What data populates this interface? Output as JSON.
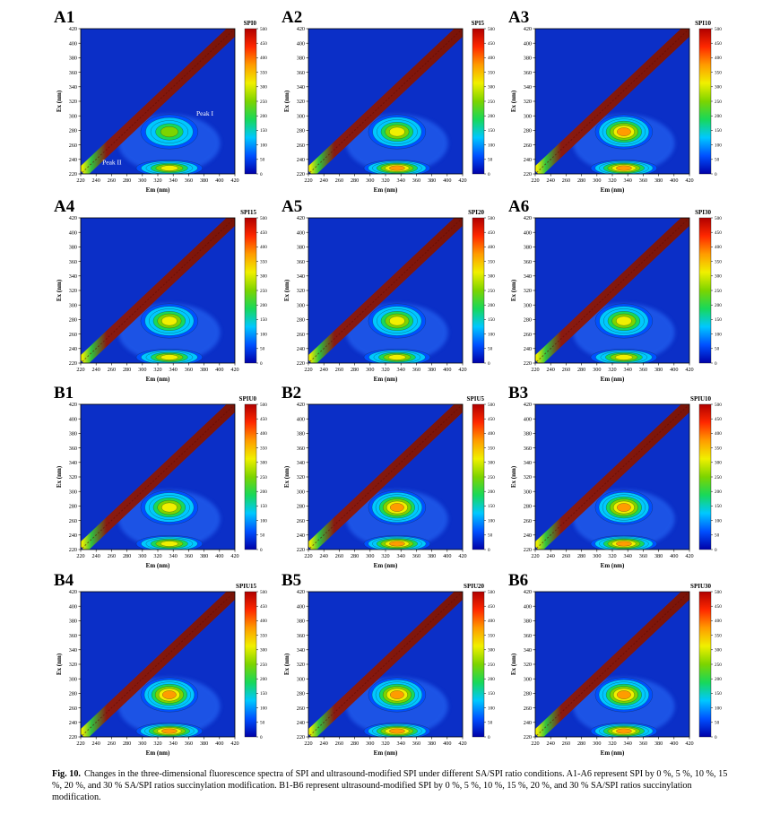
{
  "figure": {
    "caption_label": "Fig. 10.",
    "caption_text": "Changes in the three-dimensional fluorescence spectra of SPI and ultrasound-modified SPI under different SA/SPI ratio conditions. A1-A6 represent SPI by 0 %, 5 %, 10 %, 15 %, 20 %, and 30 % SA/SPI ratios succinylation modification. B1-B6 represent ultrasound-modified SPI by 0 %, 5 %, 10 %, 15 %, 20 %, and 30 % SA/SPI ratios succinylation modification."
  },
  "colors": {
    "background_blue": "#0b2fc7",
    "scatter_line": "#8a1a10",
    "colorbar_stops": [
      "#0000a8",
      "#0050ff",
      "#00c8ff",
      "#18d85a",
      "#7cd400",
      "#f0f000",
      "#ff9c00",
      "#ff2800",
      "#b00000"
    ]
  },
  "chart_data": [
    {
      "type": "heatmap",
      "panel": "A1",
      "title": "SPI0",
      "xlabel": "Em (nm)",
      "ylabel": "Ex (nm)",
      "xlim": [
        220,
        420
      ],
      "ylim": [
        220,
        420
      ],
      "x_ticks": [
        220,
        240,
        260,
        280,
        300,
        320,
        340,
        360,
        380,
        400,
        420
      ],
      "y_ticks": [
        220,
        240,
        260,
        280,
        300,
        320,
        340,
        360,
        380,
        400,
        420
      ],
      "colorbar_range": [
        0,
        500
      ],
      "colorbar_ticks": [
        0,
        50,
        100,
        150,
        200,
        250,
        300,
        350,
        400,
        450,
        500
      ],
      "peaks": [
        {
          "name": "Peak I",
          "em": 335,
          "ex": 278,
          "intensity": 270
        },
        {
          "name": "Peak II",
          "em": 335,
          "ex": 228,
          "intensity": 300
        }
      ],
      "annotations": [
        {
          "text": "Peak I",
          "em": 370,
          "ex": 300
        },
        {
          "text": "Peak II",
          "em": 248,
          "ex": 233
        }
      ]
    },
    {
      "type": "heatmap",
      "panel": "A2",
      "title": "SPI5",
      "xlabel": "Em (nm)",
      "ylabel": "Ex (nm)",
      "xlim": [
        220,
        420
      ],
      "ylim": [
        220,
        420
      ],
      "x_ticks": [
        220,
        240,
        260,
        280,
        300,
        320,
        340,
        360,
        380,
        400,
        420
      ],
      "y_ticks": [
        220,
        240,
        260,
        280,
        300,
        320,
        340,
        360,
        380,
        400,
        420
      ],
      "colorbar_range": [
        0,
        500
      ],
      "colorbar_ticks": [
        0,
        50,
        100,
        150,
        200,
        250,
        300,
        350,
        400,
        450,
        500
      ],
      "peaks": [
        {
          "name": "Peak I",
          "em": 335,
          "ex": 278,
          "intensity": 290
        },
        {
          "name": "Peak II",
          "em": 335,
          "ex": 228,
          "intensity": 330
        }
      ],
      "annotations": []
    },
    {
      "type": "heatmap",
      "panel": "A3",
      "title": "SPI10",
      "xlabel": "Em (nm)",
      "ylabel": "Ex (nm)",
      "xlim": [
        220,
        420
      ],
      "ylim": [
        220,
        420
      ],
      "x_ticks": [
        220,
        240,
        260,
        280,
        300,
        320,
        340,
        360,
        380,
        400,
        420
      ],
      "y_ticks": [
        220,
        240,
        260,
        280,
        300,
        320,
        340,
        360,
        380,
        400,
        420
      ],
      "colorbar_range": [
        0,
        500
      ],
      "colorbar_ticks": [
        0,
        50,
        100,
        150,
        200,
        250,
        300,
        350,
        400,
        450,
        500
      ],
      "peaks": [
        {
          "name": "Peak I",
          "em": 335,
          "ex": 278,
          "intensity": 330
        },
        {
          "name": "Peak II",
          "em": 335,
          "ex": 228,
          "intensity": 330
        }
      ],
      "annotations": []
    },
    {
      "type": "heatmap",
      "panel": "A4",
      "title": "SPI15",
      "xlabel": "Em (nm)",
      "ylabel": "Ex (nm)",
      "xlim": [
        220,
        420
      ],
      "ylim": [
        220,
        420
      ],
      "x_ticks": [
        220,
        240,
        260,
        280,
        300,
        320,
        340,
        360,
        380,
        400,
        420
      ],
      "y_ticks": [
        220,
        240,
        260,
        280,
        300,
        320,
        340,
        360,
        380,
        400,
        420
      ],
      "colorbar_range": [
        0,
        500
      ],
      "colorbar_ticks": [
        0,
        50,
        100,
        150,
        200,
        250,
        300,
        350,
        400,
        450,
        500
      ],
      "peaks": [
        {
          "name": "Peak I",
          "em": 335,
          "ex": 278,
          "intensity": 300
        },
        {
          "name": "Peak II",
          "em": 335,
          "ex": 228,
          "intensity": 320
        }
      ],
      "annotations": []
    },
    {
      "type": "heatmap",
      "panel": "A5",
      "title": "SPI20",
      "xlabel": "Em (nm)",
      "ylabel": "Ex (nm)",
      "xlim": [
        220,
        420
      ],
      "ylim": [
        220,
        420
      ],
      "x_ticks": [
        220,
        240,
        260,
        280,
        300,
        320,
        340,
        360,
        380,
        400,
        420
      ],
      "y_ticks": [
        220,
        240,
        260,
        280,
        300,
        320,
        340,
        360,
        380,
        400,
        420
      ],
      "colorbar_range": [
        0,
        500
      ],
      "colorbar_ticks": [
        0,
        50,
        100,
        150,
        200,
        250,
        300,
        350,
        400,
        450,
        500
      ],
      "peaks": [
        {
          "name": "Peak I",
          "em": 335,
          "ex": 278,
          "intensity": 290
        },
        {
          "name": "Peak II",
          "em": 335,
          "ex": 228,
          "intensity": 320
        }
      ],
      "annotations": []
    },
    {
      "type": "heatmap",
      "panel": "A6",
      "title": "SPI30",
      "xlabel": "Em (nm)",
      "ylabel": "Ex (nm)",
      "xlim": [
        220,
        420
      ],
      "ylim": [
        220,
        420
      ],
      "x_ticks": [
        220,
        240,
        260,
        280,
        300,
        320,
        340,
        360,
        380,
        400,
        420
      ],
      "y_ticks": [
        220,
        240,
        260,
        280,
        300,
        320,
        340,
        360,
        380,
        400,
        420
      ],
      "colorbar_range": [
        0,
        500
      ],
      "colorbar_ticks": [
        0,
        50,
        100,
        150,
        200,
        250,
        300,
        350,
        400,
        450,
        500
      ],
      "peaks": [
        {
          "name": "Peak I",
          "em": 335,
          "ex": 278,
          "intensity": 290
        },
        {
          "name": "Peak II",
          "em": 335,
          "ex": 228,
          "intensity": 310
        }
      ],
      "annotations": []
    },
    {
      "type": "heatmap",
      "panel": "B1",
      "title": "SPIU0",
      "xlabel": "Em (nm)",
      "ylabel": "Ex (nm)",
      "xlim": [
        220,
        420
      ],
      "ylim": [
        220,
        420
      ],
      "x_ticks": [
        220,
        240,
        260,
        280,
        300,
        320,
        340,
        360,
        380,
        400,
        420
      ],
      "y_ticks": [
        220,
        240,
        260,
        280,
        300,
        320,
        340,
        360,
        380,
        400,
        420
      ],
      "colorbar_range": [
        0,
        500
      ],
      "colorbar_ticks": [
        0,
        50,
        100,
        150,
        200,
        250,
        300,
        350,
        400,
        450,
        500
      ],
      "peaks": [
        {
          "name": "Peak I",
          "em": 335,
          "ex": 278,
          "intensity": 280
        },
        {
          "name": "Peak II",
          "em": 335,
          "ex": 228,
          "intensity": 310
        }
      ],
      "annotations": []
    },
    {
      "type": "heatmap",
      "panel": "B2",
      "title": "SPIU5",
      "xlabel": "Em (nm)",
      "ylabel": "Ex (nm)",
      "xlim": [
        220,
        420
      ],
      "ylim": [
        220,
        420
      ],
      "x_ticks": [
        220,
        240,
        260,
        280,
        300,
        320,
        340,
        360,
        380,
        400,
        420
      ],
      "y_ticks": [
        220,
        240,
        260,
        280,
        300,
        320,
        340,
        360,
        380,
        400,
        420
      ],
      "colorbar_range": [
        0,
        500
      ],
      "colorbar_ticks": [
        0,
        50,
        100,
        150,
        200,
        250,
        300,
        350,
        400,
        450,
        500
      ],
      "peaks": [
        {
          "name": "Peak I",
          "em": 335,
          "ex": 278,
          "intensity": 330
        },
        {
          "name": "Peak II",
          "em": 335,
          "ex": 228,
          "intensity": 330
        }
      ],
      "annotations": []
    },
    {
      "type": "heatmap",
      "panel": "B3",
      "title": "SPIU10",
      "xlabel": "Em (nm)",
      "ylabel": "Ex (nm)",
      "xlim": [
        220,
        420
      ],
      "ylim": [
        220,
        420
      ],
      "x_ticks": [
        220,
        240,
        260,
        280,
        300,
        320,
        340,
        360,
        380,
        400,
        420
      ],
      "y_ticks": [
        220,
        240,
        260,
        280,
        300,
        320,
        340,
        360,
        380,
        400,
        420
      ],
      "colorbar_range": [
        0,
        500
      ],
      "colorbar_ticks": [
        0,
        50,
        100,
        150,
        200,
        250,
        300,
        350,
        400,
        450,
        500
      ],
      "peaks": [
        {
          "name": "Peak I",
          "em": 335,
          "ex": 278,
          "intensity": 340
        },
        {
          "name": "Peak II",
          "em": 335,
          "ex": 228,
          "intensity": 340
        }
      ],
      "annotations": []
    },
    {
      "type": "heatmap",
      "panel": "B4",
      "title": "SPIU15",
      "xlabel": "Em (nm)",
      "ylabel": "Ex (nm)",
      "xlim": [
        220,
        420
      ],
      "ylim": [
        220,
        420
      ],
      "x_ticks": [
        220,
        240,
        260,
        280,
        300,
        320,
        340,
        360,
        380,
        400,
        420
      ],
      "y_ticks": [
        220,
        240,
        260,
        280,
        300,
        320,
        340,
        360,
        380,
        400,
        420
      ],
      "colorbar_range": [
        0,
        500
      ],
      "colorbar_ticks": [
        0,
        50,
        100,
        150,
        200,
        250,
        300,
        350,
        400,
        450,
        500
      ],
      "peaks": [
        {
          "name": "Peak I",
          "em": 335,
          "ex": 278,
          "intensity": 350
        },
        {
          "name": "Peak II",
          "em": 335,
          "ex": 228,
          "intensity": 350
        }
      ],
      "annotations": []
    },
    {
      "type": "heatmap",
      "panel": "B5",
      "title": "SPIU20",
      "xlabel": "Em (nm)",
      "ylabel": "Ex (nm)",
      "xlim": [
        220,
        420
      ],
      "ylim": [
        220,
        420
      ],
      "x_ticks": [
        220,
        240,
        260,
        280,
        300,
        320,
        340,
        360,
        380,
        400,
        420
      ],
      "y_ticks": [
        220,
        240,
        260,
        280,
        300,
        320,
        340,
        360,
        380,
        400,
        420
      ],
      "colorbar_range": [
        0,
        500
      ],
      "colorbar_ticks": [
        0,
        50,
        100,
        150,
        200,
        250,
        300,
        350,
        400,
        450,
        500
      ],
      "peaks": [
        {
          "name": "Peak I",
          "em": 335,
          "ex": 278,
          "intensity": 340
        },
        {
          "name": "Peak II",
          "em": 335,
          "ex": 228,
          "intensity": 340
        }
      ],
      "annotations": []
    },
    {
      "type": "heatmap",
      "panel": "B6",
      "title": "SPIU30",
      "xlabel": "Em (nm)",
      "ylabel": "Ex (nm)",
      "xlim": [
        220,
        420
      ],
      "ylim": [
        220,
        420
      ],
      "x_ticks": [
        220,
        240,
        260,
        280,
        300,
        320,
        340,
        360,
        380,
        400,
        420
      ],
      "y_ticks": [
        220,
        240,
        260,
        280,
        300,
        320,
        340,
        360,
        380,
        400,
        420
      ],
      "colorbar_range": [
        0,
        500
      ],
      "colorbar_ticks": [
        0,
        50,
        100,
        150,
        200,
        250,
        300,
        350,
        400,
        450,
        500
      ],
      "peaks": [
        {
          "name": "Peak I",
          "em": 335,
          "ex": 278,
          "intensity": 330
        },
        {
          "name": "Peak II",
          "em": 335,
          "ex": 228,
          "intensity": 340
        }
      ],
      "annotations": []
    }
  ]
}
